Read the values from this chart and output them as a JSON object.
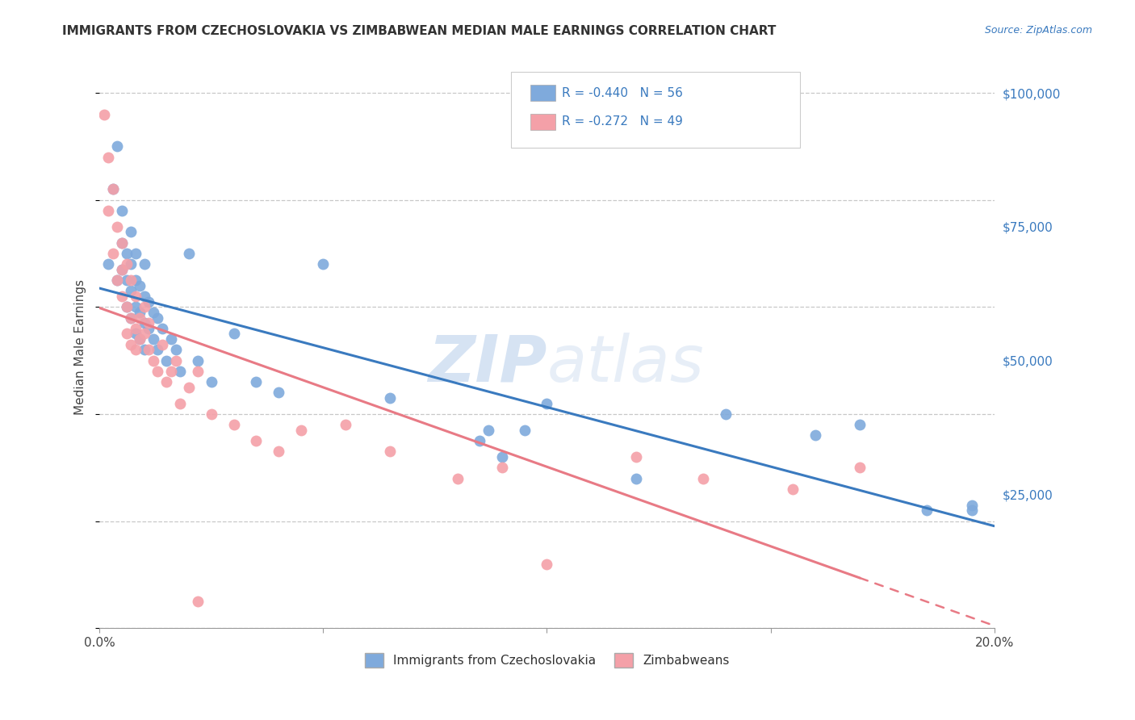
{
  "title": "IMMIGRANTS FROM CZECHOSLOVAKIA VS ZIMBABWEAN MEDIAN MALE EARNINGS CORRELATION CHART",
  "source": "Source: ZipAtlas.com",
  "ylabel": "Median Male Earnings",
  "xlim": [
    0.0,
    0.2
  ],
  "ylim": [
    0,
    105000
  ],
  "yticks": [
    0,
    25000,
    50000,
    75000,
    100000
  ],
  "ytick_labels": [
    "",
    "$25,000",
    "$50,000",
    "$75,000",
    "$100,000"
  ],
  "xticks": [
    0.0,
    0.05,
    0.1,
    0.15,
    0.2
  ],
  "xtick_labels": [
    "0.0%",
    "",
    "",
    "",
    "20.0%"
  ],
  "legend_labels": [
    "Immigrants from Czechoslovakia",
    "Zimbabweans"
  ],
  "blue_color": "#7faadc",
  "pink_color": "#f4a0a8",
  "blue_line_color": "#3a7abf",
  "pink_line_color": "#e87a85",
  "background_color": "#ffffff",
  "grid_color": "#c8c8c8",
  "watermark_zip": "ZIP",
  "watermark_atlas": "atlas",
  "blue_x": [
    0.002,
    0.003,
    0.004,
    0.004,
    0.005,
    0.005,
    0.005,
    0.006,
    0.006,
    0.006,
    0.007,
    0.007,
    0.007,
    0.007,
    0.008,
    0.008,
    0.008,
    0.008,
    0.009,
    0.009,
    0.009,
    0.01,
    0.01,
    0.01,
    0.01,
    0.011,
    0.011,
    0.012,
    0.012,
    0.013,
    0.013,
    0.014,
    0.015,
    0.016,
    0.017,
    0.018,
    0.02,
    0.022,
    0.025,
    0.03,
    0.035,
    0.04,
    0.05,
    0.065,
    0.09,
    0.095,
    0.1,
    0.12,
    0.17,
    0.185,
    0.085,
    0.087,
    0.14,
    0.16,
    0.195,
    0.195
  ],
  "blue_y": [
    68000,
    82000,
    90000,
    65000,
    67000,
    72000,
    78000,
    60000,
    65000,
    70000,
    58000,
    63000,
    68000,
    74000,
    55000,
    60000,
    65000,
    70000,
    54000,
    59000,
    64000,
    52000,
    57000,
    62000,
    68000,
    56000,
    61000,
    54000,
    59000,
    52000,
    58000,
    56000,
    50000,
    54000,
    52000,
    48000,
    70000,
    50000,
    46000,
    55000,
    46000,
    44000,
    68000,
    43000,
    32000,
    37000,
    42000,
    28000,
    38000,
    22000,
    35000,
    37000,
    40000,
    36000,
    23000,
    22000
  ],
  "pink_x": [
    0.001,
    0.002,
    0.002,
    0.003,
    0.003,
    0.004,
    0.004,
    0.005,
    0.005,
    0.005,
    0.006,
    0.006,
    0.006,
    0.007,
    0.007,
    0.007,
    0.008,
    0.008,
    0.008,
    0.009,
    0.009,
    0.01,
    0.01,
    0.011,
    0.011,
    0.012,
    0.013,
    0.014,
    0.015,
    0.016,
    0.017,
    0.018,
    0.02,
    0.022,
    0.025,
    0.03,
    0.035,
    0.04,
    0.045,
    0.055,
    0.065,
    0.08,
    0.09,
    0.1,
    0.12,
    0.135,
    0.155,
    0.17,
    0.022
  ],
  "pink_y": [
    96000,
    88000,
    78000,
    82000,
    70000,
    75000,
    65000,
    72000,
    67000,
    62000,
    68000,
    60000,
    55000,
    65000,
    58000,
    53000,
    62000,
    56000,
    52000,
    58000,
    54000,
    55000,
    60000,
    52000,
    57000,
    50000,
    48000,
    53000,
    46000,
    48000,
    50000,
    42000,
    45000,
    48000,
    40000,
    38000,
    35000,
    33000,
    37000,
    38000,
    33000,
    28000,
    30000,
    12000,
    32000,
    28000,
    26000,
    30000,
    5000
  ]
}
